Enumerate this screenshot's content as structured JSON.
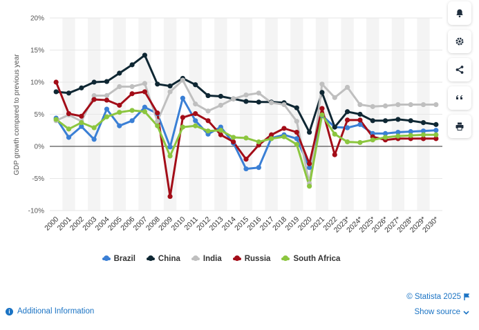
{
  "chart_data": {
    "type": "line",
    "ylabel": "GDP growth compared to previous year",
    "ylim": [
      -10,
      20
    ],
    "yticks": [
      "20%",
      "15%",
      "10%",
      "5%",
      "0%",
      "-5%",
      "-10%"
    ],
    "ytick_values": [
      20,
      15,
      10,
      5,
      0,
      -5,
      -10
    ],
    "categories": [
      "2000",
      "2001",
      "2002",
      "2003",
      "2004",
      "2005",
      "2006",
      "2007",
      "2008",
      "2009",
      "2010",
      "2011",
      "2012",
      "2013",
      "2014",
      "2015",
      "2016",
      "2017",
      "2018",
      "2019",
      "2020",
      "2021",
      "2022",
      "2023*",
      "2024*",
      "2025*",
      "2026*",
      "2027*",
      "2028*",
      "2029*",
      "2030*"
    ],
    "grid": true,
    "legend_position": "bottom",
    "series": [
      {
        "name": "Brazil",
        "color": "#3a7fd5",
        "values": [
          4.4,
          1.4,
          3.1,
          1.1,
          5.8,
          3.2,
          4.0,
          6.1,
          5.1,
          -0.1,
          7.5,
          4.0,
          1.9,
          3.0,
          0.5,
          -3.5,
          -3.3,
          1.3,
          1.8,
          1.2,
          -3.3,
          4.8,
          3.0,
          2.9,
          3.4,
          2.0,
          2.0,
          2.2,
          2.3,
          2.4,
          2.5
        ]
      },
      {
        "name": "China",
        "color": "#0f2733",
        "values": [
          8.5,
          8.3,
          9.1,
          10.0,
          10.1,
          11.4,
          12.7,
          14.2,
          9.7,
          9.4,
          10.6,
          9.6,
          7.9,
          7.8,
          7.4,
          7.0,
          6.9,
          6.9,
          6.8,
          6.0,
          2.2,
          8.4,
          3.0,
          5.4,
          5.0,
          4.0,
          4.0,
          4.2,
          4.0,
          3.7,
          3.4
        ]
      },
      {
        "name": "India",
        "color": "#bfbfbf",
        "values": [
          4.0,
          4.9,
          3.9,
          7.9,
          7.9,
          9.3,
          9.3,
          9.8,
          3.9,
          8.5,
          10.3,
          6.6,
          5.5,
          6.4,
          7.4,
          8.0,
          8.3,
          6.8,
          6.5,
          3.9,
          -5.8,
          9.7,
          7.6,
          9.2,
          6.5,
          6.2,
          6.3,
          6.5,
          6.5,
          6.5,
          6.5
        ]
      },
      {
        "name": "Russia",
        "color": "#a30d18",
        "values": [
          10.0,
          5.1,
          4.7,
          7.3,
          7.2,
          6.4,
          8.2,
          8.5,
          5.2,
          -7.8,
          4.5,
          5.1,
          4.0,
          1.8,
          0.7,
          -2.0,
          0.2,
          1.8,
          2.8,
          2.2,
          -2.7,
          5.9,
          -1.3,
          4.1,
          4.1,
          1.5,
          1.0,
          1.2,
          1.2,
          1.2,
          1.2
        ]
      },
      {
        "name": "South Africa",
        "color": "#8cc63f",
        "values": [
          4.2,
          2.7,
          3.7,
          2.9,
          4.6,
          5.3,
          5.6,
          5.4,
          3.2,
          -1.5,
          3.0,
          3.2,
          2.4,
          2.5,
          1.4,
          1.3,
          0.7,
          1.2,
          1.5,
          0.3,
          -6.2,
          4.9,
          1.9,
          0.7,
          0.6,
          1.0,
          1.4,
          1.6,
          1.7,
          1.8,
          1.8
        ]
      }
    ]
  },
  "legend": {
    "items": [
      {
        "label": "Brazil",
        "color": "#3a7fd5"
      },
      {
        "label": "China",
        "color": "#0f2733"
      },
      {
        "label": "India",
        "color": "#bfbfbf"
      },
      {
        "label": "Russia",
        "color": "#a30d18"
      },
      {
        "label": "South Africa",
        "color": "#8cc63f"
      }
    ]
  },
  "footer": {
    "credits": "© Statista 2025",
    "additional_info": "Additional Information",
    "show_source": "Show source"
  },
  "sidebar": {
    "buttons": [
      "bell-icon",
      "gear-icon",
      "share-icon",
      "quote-icon",
      "print-icon"
    ]
  }
}
